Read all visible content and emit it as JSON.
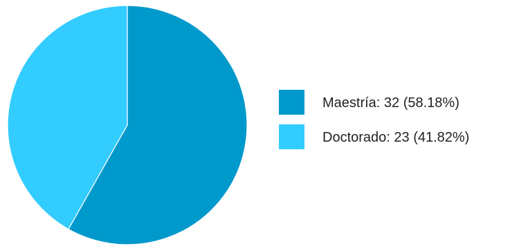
{
  "chart_data": {
    "type": "pie",
    "title": "",
    "slices": [
      {
        "label": "Maestría",
        "value": 32,
        "percent": 58.18,
        "color": "#0099cc",
        "legend_text": "Maestría: 32 (58.18%)"
      },
      {
        "label": "Doctorado",
        "value": 23,
        "percent": 41.82,
        "color": "#33ccff",
        "legend_text": "Doctorado: 23 (41.82%)"
      }
    ],
    "start_angle": "12 o'clock",
    "direction": "clockwise",
    "slice_border_color": "#ffffff",
    "legend_position": "right"
  }
}
